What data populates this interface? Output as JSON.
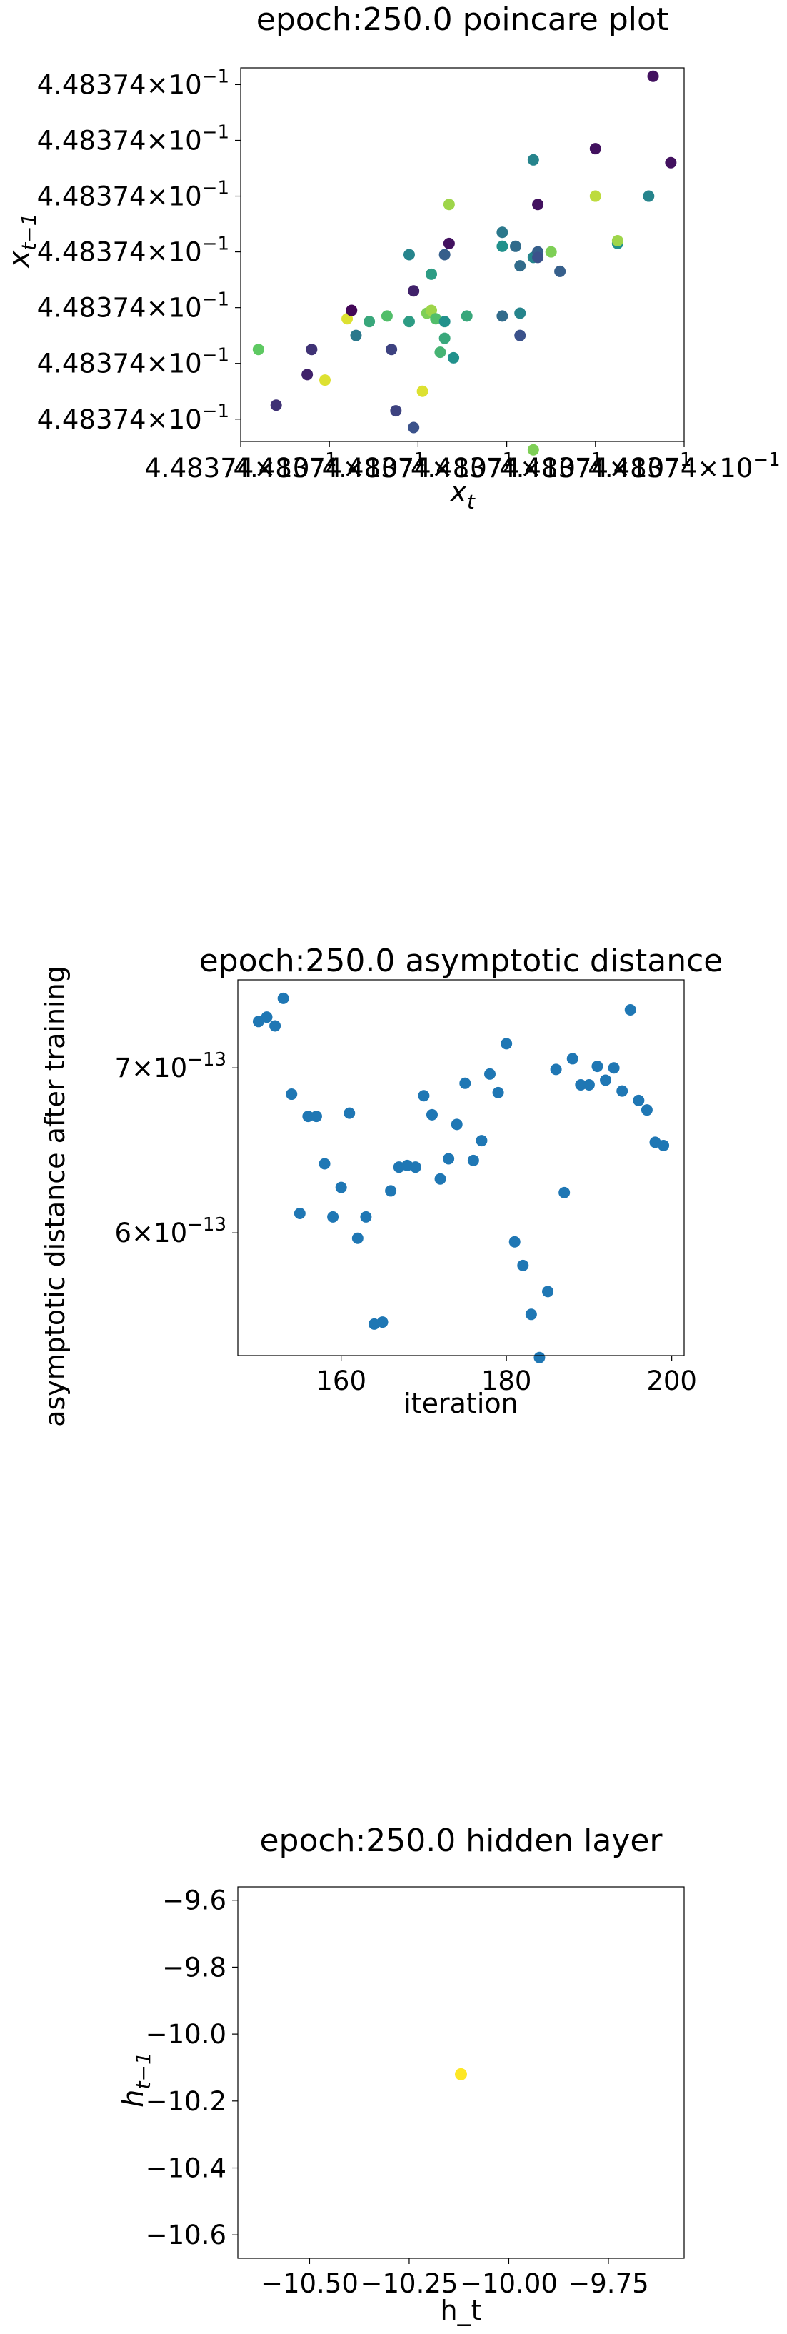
{
  "colors": {
    "scatter_default": "#1f77b4",
    "hidden_point": "#fde725",
    "axes": "#000000",
    "viridis_stops": [
      "#440154",
      "#3b528b",
      "#21918c",
      "#5ec962",
      "#fde725"
    ]
  },
  "chart_data": [
    {
      "id": "poincare",
      "type": "scatter",
      "title": "epoch:250.0 poincare plot",
      "xlabel_base": "x",
      "xlabel_sub": "t",
      "ylabel_base": "x",
      "ylabel_sub": "t−1",
      "tick_label_mantissa": "4.48374",
      "tick_label_times": "×10",
      "tick_label_exp": "−1",
      "x_tick_values": [
        0,
        1,
        2,
        3,
        4,
        5
      ],
      "y_tick_values": [
        0,
        1,
        2,
        3,
        4,
        5,
        6
      ],
      "xlim": [
        0,
        5
      ],
      "ylim": [
        -0.4,
        6.3
      ],
      "colormap": "viridis",
      "grid": false,
      "points": [
        {
          "x": 0.2,
          "y": 1.25,
          "c": 0.75
        },
        {
          "x": 0.4,
          "y": 0.25,
          "c": 0.15
        },
        {
          "x": 0.75,
          "y": 0.8,
          "c": 0.1
        },
        {
          "x": 0.8,
          "y": 1.25,
          "c": 0.15
        },
        {
          "x": 0.95,
          "y": 0.7,
          "c": 0.95
        },
        {
          "x": 1.2,
          "y": 1.8,
          "c": 0.95
        },
        {
          "x": 1.25,
          "y": 1.95,
          "c": 0.02
        },
        {
          "x": 1.3,
          "y": 1.5,
          "c": 0.4
        },
        {
          "x": 1.45,
          "y": 1.75,
          "c": 0.6
        },
        {
          "x": 1.65,
          "y": 1.85,
          "c": 0.7
        },
        {
          "x": 1.7,
          "y": 1.25,
          "c": 0.2
        },
        {
          "x": 1.75,
          "y": 0.15,
          "c": 0.2
        },
        {
          "x": 1.9,
          "y": 2.95,
          "c": 0.45
        },
        {
          "x": 1.9,
          "y": 1.75,
          "c": 0.55
        },
        {
          "x": 1.95,
          "y": -0.15,
          "c": 0.25
        },
        {
          "x": 1.95,
          "y": 2.3,
          "c": 0.1
        },
        {
          "x": 2.05,
          "y": 0.5,
          "c": 0.95
        },
        {
          "x": 2.1,
          "y": 1.9,
          "c": 0.8
        },
        {
          "x": 2.15,
          "y": 2.6,
          "c": 0.55
        },
        {
          "x": 2.15,
          "y": 1.95,
          "c": 0.85
        },
        {
          "x": 2.2,
          "y": 1.8,
          "c": 0.7
        },
        {
          "x": 2.25,
          "y": 1.2,
          "c": 0.65
        },
        {
          "x": 2.3,
          "y": 1.75,
          "c": 0.5
        },
        {
          "x": 2.3,
          "y": 1.45,
          "c": 0.6
        },
        {
          "x": 2.3,
          "y": 2.95,
          "c": 0.3
        },
        {
          "x": 2.35,
          "y": 3.15,
          "c": 0.05
        },
        {
          "x": 2.35,
          "y": 3.85,
          "c": 0.85
        },
        {
          "x": 2.4,
          "y": 1.1,
          "c": 0.5
        },
        {
          "x": 2.55,
          "y": 1.85,
          "c": 0.6
        },
        {
          "x": 2.95,
          "y": 3.35,
          "c": 0.4
        },
        {
          "x": 2.95,
          "y": 1.85,
          "c": 0.35
        },
        {
          "x": 2.95,
          "y": 3.1,
          "c": 0.5
        },
        {
          "x": 3.1,
          "y": 3.1,
          "c": 0.35
        },
        {
          "x": 3.15,
          "y": 2.75,
          "c": 0.35
        },
        {
          "x": 3.15,
          "y": 1.5,
          "c": 0.25
        },
        {
          "x": 3.15,
          "y": 1.9,
          "c": 0.45
        },
        {
          "x": 3.3,
          "y": 2.9,
          "c": 0.45
        },
        {
          "x": 3.3,
          "y": 4.65,
          "c": 0.45
        },
        {
          "x": 3.3,
          "y": -0.55,
          "c": 0.8
        },
        {
          "x": 3.35,
          "y": 3.0,
          "c": 0.3
        },
        {
          "x": 3.35,
          "y": 2.9,
          "c": 0.25
        },
        {
          "x": 3.35,
          "y": 3.85,
          "c": 0.05
        },
        {
          "x": 3.5,
          "y": 3.0,
          "c": 0.8
        },
        {
          "x": 3.6,
          "y": 2.65,
          "c": 0.3
        },
        {
          "x": 4.0,
          "y": 4.0,
          "c": 0.9
        },
        {
          "x": 4.0,
          "y": 4.85,
          "c": 0.05
        },
        {
          "x": 4.25,
          "y": 3.15,
          "c": 0.5
        },
        {
          "x": 4.25,
          "y": 3.2,
          "c": 0.85
        },
        {
          "x": 4.6,
          "y": 4.0,
          "c": 0.45
        },
        {
          "x": 4.65,
          "y": 6.15,
          "c": 0.05
        },
        {
          "x": 4.85,
          "y": 4.6,
          "c": 0.05
        }
      ]
    },
    {
      "id": "asymptotic",
      "type": "scatter",
      "title": "epoch:250.0 asymptotic distance",
      "xlabel": "iteration",
      "ylabel": "asymptotic distance after training",
      "x_ticks": [
        {
          "value": 160,
          "label": "160"
        },
        {
          "value": 180,
          "label": "180"
        },
        {
          "value": 200,
          "label": "200"
        }
      ],
      "y_ticks": [
        {
          "value": 6e-13,
          "mantissa": "6",
          "times": "×10",
          "exp": "−13"
        },
        {
          "value": 7e-13,
          "mantissa": "7",
          "times": "×10",
          "exp": "−13"
        }
      ],
      "xlim": [
        147.5,
        201.5
      ],
      "ylim": [
        5.35e-13,
        7.6e-13
      ],
      "yscale": "log",
      "grid": false,
      "x": [
        150,
        151,
        152,
        153,
        154,
        155,
        156,
        157,
        158,
        159,
        160,
        161,
        162,
        163,
        164,
        165,
        166,
        167,
        168,
        169,
        170,
        171,
        172,
        173,
        174,
        175,
        176,
        177,
        178,
        179,
        180,
        181,
        182,
        183,
        184,
        185,
        186,
        187,
        188,
        189,
        190,
        191,
        192,
        193,
        194,
        195,
        196,
        197,
        198,
        199
      ],
      "y": [
        7.31e-13,
        7.34e-13,
        7.28e-13,
        7.47e-13,
        6.83e-13,
        6.11e-13,
        6.69e-13,
        6.69e-13,
        6.4e-13,
        6.09e-13,
        6.26e-13,
        6.71e-13,
        5.97e-13,
        6.09e-13,
        5.51e-13,
        5.52e-13,
        6.24e-13,
        6.38e-13,
        6.39e-13,
        6.38e-13,
        6.82e-13,
        6.7e-13,
        6.31e-13,
        6.43e-13,
        6.64e-13,
        6.9e-13,
        6.42e-13,
        6.54e-13,
        6.96e-13,
        6.84e-13,
        7.16e-13,
        5.95e-13,
        5.82e-13,
        5.56e-13,
        5.34e-13,
        5.68e-13,
        6.99e-13,
        6.23e-13,
        7.06e-13,
        6.89e-13,
        6.89e-13,
        7.01e-13,
        6.92e-13,
        7e-13,
        6.85e-13,
        7.39e-13,
        6.79e-13,
        6.73e-13,
        6.53e-13,
        6.51e-13
      ]
    },
    {
      "id": "hidden",
      "type": "scatter",
      "title": "epoch:250.0 hidden layer",
      "xlabel": "h_t",
      "ylabel_base": "h",
      "ylabel_sub": "t−1",
      "x_ticks": [
        {
          "value": -10.5,
          "label": "−10.50"
        },
        {
          "value": -10.25,
          "label": "−10.25"
        },
        {
          "value": -10.0,
          "label": "−10.00"
        },
        {
          "value": -9.75,
          "label": "−9.75"
        }
      ],
      "y_ticks": [
        {
          "value": -9.6,
          "label": "−9.6"
        },
        {
          "value": -9.8,
          "label": "−9.8"
        },
        {
          "value": -10.0,
          "label": "−10.0"
        },
        {
          "value": -10.2,
          "label": "−10.2"
        },
        {
          "value": -10.4,
          "label": "−10.4"
        },
        {
          "value": -10.6,
          "label": "−10.6"
        }
      ],
      "xlim": [
        -10.68,
        -9.56
      ],
      "ylim": [
        -10.67,
        -9.56
      ],
      "grid": false,
      "points": [
        {
          "x": -10.12,
          "y": -10.12
        }
      ]
    }
  ]
}
